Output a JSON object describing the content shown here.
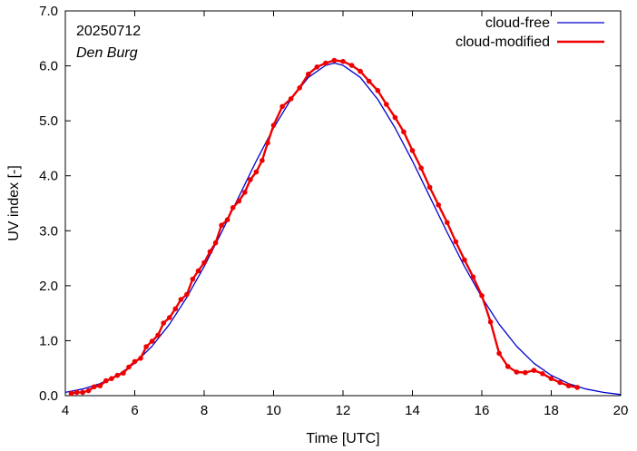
{
  "chart_data": {
    "type": "line",
    "xlabel": "Time  [UTC]",
    "ylabel": "UV index  [-]",
    "xlim": [
      4,
      20
    ],
    "ylim": [
      0,
      7
    ],
    "x_ticks": [
      4,
      6,
      8,
      10,
      12,
      14,
      16,
      18,
      20
    ],
    "x_tick_labels": [
      "4",
      "6",
      "8",
      "10",
      "12",
      "14",
      "16",
      "18",
      "20"
    ],
    "y_ticks": [
      0,
      1,
      2,
      3,
      4,
      5,
      6,
      7
    ],
    "y_tick_labels": [
      "0.0",
      "1.0",
      "2.0",
      "3.0",
      "4.0",
      "5.0",
      "6.0",
      "7.0"
    ],
    "annotations": [
      "20250712",
      "Den Burg"
    ],
    "legend_position": "top-right",
    "grid": false,
    "series": [
      {
        "name": "cloud-free",
        "color": "#0000cc",
        "x": [
          4.0,
          4.5,
          5.0,
          5.5,
          6.0,
          6.5,
          7.0,
          7.5,
          8.0,
          8.5,
          9.0,
          9.5,
          10.0,
          10.5,
          11.0,
          11.5,
          11.75,
          12.0,
          12.5,
          13.0,
          13.5,
          14.0,
          14.5,
          15.0,
          15.5,
          16.0,
          16.5,
          17.0,
          17.5,
          18.0,
          18.5,
          19.0,
          19.5,
          20.0
        ],
        "y": [
          0.06,
          0.12,
          0.22,
          0.37,
          0.59,
          0.9,
          1.3,
          1.79,
          2.35,
          2.97,
          3.62,
          4.27,
          4.87,
          5.39,
          5.79,
          6.01,
          6.05,
          6.01,
          5.79,
          5.39,
          4.87,
          4.27,
          3.62,
          2.97,
          2.35,
          1.79,
          1.3,
          0.9,
          0.59,
          0.37,
          0.22,
          0.12,
          0.06,
          0.02
        ]
      },
      {
        "name": "cloud-modified",
        "color": "#ee0000",
        "x": [
          4.17,
          4.33,
          4.5,
          4.67,
          4.83,
          5.0,
          5.17,
          5.33,
          5.5,
          5.67,
          5.83,
          6.0,
          6.17,
          6.33,
          6.5,
          6.67,
          6.83,
          7.0,
          7.17,
          7.33,
          7.5,
          7.67,
          7.83,
          8.0,
          8.17,
          8.33,
          8.5,
          8.67,
          8.83,
          9.0,
          9.17,
          9.33,
          9.5,
          9.67,
          9.83,
          10.0,
          10.25,
          10.5,
          10.75,
          11.0,
          11.25,
          11.5,
          11.75,
          12.0,
          12.25,
          12.5,
          12.75,
          13.0,
          13.25,
          13.5,
          13.75,
          14.0,
          14.25,
          14.5,
          14.75,
          15.0,
          15.25,
          15.5,
          15.75,
          16.0,
          16.25,
          16.5,
          16.75,
          17.0,
          17.25,
          17.5,
          17.75,
          18.0,
          18.25,
          18.5,
          18.75
        ],
        "y": [
          0.04,
          0.06,
          0.06,
          0.09,
          0.16,
          0.18,
          0.27,
          0.31,
          0.37,
          0.41,
          0.52,
          0.62,
          0.68,
          0.89,
          0.99,
          1.1,
          1.32,
          1.42,
          1.58,
          1.75,
          1.84,
          2.12,
          2.27,
          2.42,
          2.62,
          2.78,
          3.1,
          3.2,
          3.42,
          3.54,
          3.7,
          3.93,
          4.07,
          4.28,
          4.6,
          4.92,
          5.26,
          5.4,
          5.6,
          5.85,
          5.98,
          6.05,
          6.1,
          6.08,
          6.01,
          5.9,
          5.72,
          5.55,
          5.3,
          5.06,
          4.8,
          4.46,
          4.14,
          3.79,
          3.47,
          3.15,
          2.8,
          2.47,
          2.16,
          1.82,
          1.34,
          0.77,
          0.53,
          0.43,
          0.42,
          0.46,
          0.4,
          0.31,
          0.24,
          0.18,
          0.15
        ]
      }
    ]
  }
}
